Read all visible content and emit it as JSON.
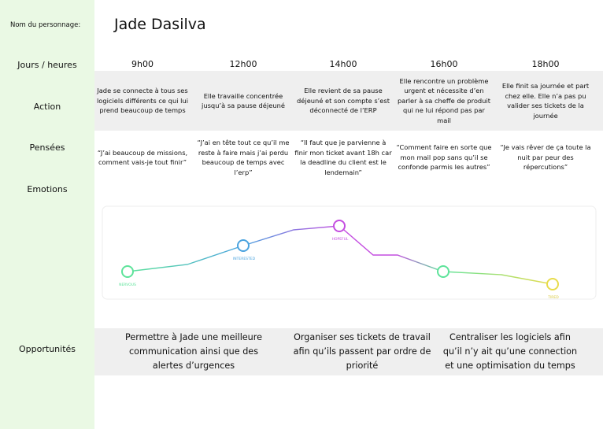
{
  "persona_label": "Nom du personnage:",
  "persona_name": "Jade Dasilva",
  "row_labels": {
    "times": "Jours / heures",
    "action": "Action",
    "thoughts": "Pensées",
    "emotions": "Emotions",
    "opportunities": "Opportunités"
  },
  "times": [
    "9h00",
    "12h00",
    "14h00",
    "16h00",
    "18h00"
  ],
  "actions": [
    "Jade se connecte à tous ses logiciels différents ce qui lui prend beaucoup de temps",
    "Elle travaille concentrée jusqu’à sa pause déjeuné",
    "Elle revient de sa pause déjeuné et son compte s’est déconnecté de l’ERP",
    "Elle rencontre un problème urgent et nécessite d’en parler à sa cheffe de produit qui ne lui répond pas par mail",
    "Elle finit sa journée et part chez elle. Elle n’a pas pu valider ses tickets de la journée"
  ],
  "thoughts": [
    "“J’ai beaucoup de missions, comment vais-je tout finir”",
    "“J’ai en tête tout ce qu’il me reste à faire mais j’ai perdu beaucoup de temps avec l’erp”",
    "“Il faut que je parvienne à finir mon ticket avant 18h car la deadline du client est le lendemain”",
    "“Comment faire en sorte que mon mail pop sans qu’il se confonde parmis les autres”",
    "“Je vais rêver de ça toute la nuit par peur des répercutions”"
  ],
  "emotion_labels": [
    "NERVOUS",
    "INTERESTED",
    "HOPEFUL",
    "TIRED"
  ],
  "opportunities": [
    "Permettre à Jade une meilleure communication ainsi que des alertes d’urgences",
    "Organiser ses tickets de travail afin qu’ils passent par ordre de priorité",
    "Centraliser les logiciels afin qu’il n’y ait qu’une connection et une optimisation du temps"
  ]
}
